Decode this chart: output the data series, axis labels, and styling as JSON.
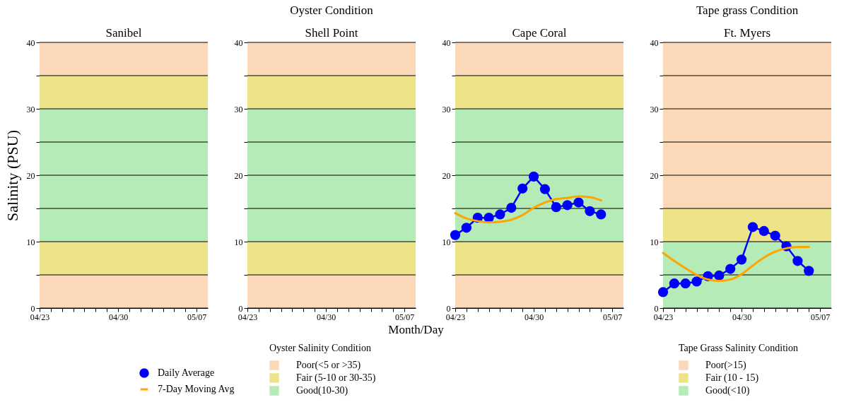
{
  "chart_data": [
    {
      "type": "line",
      "title": "Sanibel",
      "ylabel": "Salinity (PSU)",
      "legend": "bottom right",
      "legend_title": "Oyster Salinity Condition",
      "xlim": [
        "--04-23",
        "--05-08"
      ],
      "ylim": [
        0,
        40
      ],
      "yticks": [
        0,
        {
          "value": 5,
          "label": null
        },
        10,
        {
          "value": 15,
          "label": null
        },
        20,
        {
          "value": 25,
          "label": null
        },
        30,
        {
          "value": 35,
          "label": null
        },
        40
      ],
      "xticks": [
        {
          "value": "--04-23",
          "label": "04/23"
        },
        {
          "value": "--04-24",
          "label": null
        },
        {
          "value": "--04-25",
          "label": null
        },
        {
          "value": "--04-26",
          "label": null
        },
        {
          "value": "--04-27",
          "label": null
        },
        {
          "value": "--04-28",
          "label": null
        },
        {
          "value": "--04-29",
          "label": null
        },
        {
          "value": "--04-30",
          "label": "04/30"
        },
        {
          "value": "--05-01",
          "label": null
        },
        {
          "value": "--05-02",
          "label": null
        },
        {
          "value": "--05-03",
          "label": null
        },
        {
          "value": "--05-04",
          "label": null
        },
        {
          "value": "--05-05",
          "label": null
        },
        {
          "value": "--05-06",
          "label": null
        },
        {
          "value": "--05-07",
          "label": "05/07"
        }
      ],
      "grid": "y",
      "bands": [
        {
          "axis": "y",
          "from": 0,
          "to": 5,
          "label": "Poor(<5 or >35)",
          "color": "#fbd8b8"
        },
        {
          "axis": "y",
          "from": 5,
          "to": 10,
          "label": "Fair (5-10 or 30-35)",
          "color": "#ede389"
        },
        {
          "axis": "y",
          "from": 10,
          "to": 30,
          "label": "Good(10-30)",
          "color": "#b4ebb6"
        },
        {
          "axis": "y",
          "from": 30,
          "to": 35,
          "color": "#ede389"
        },
        {
          "axis": "y",
          "from": 35,
          "to": 40,
          "color": "#fbd8b8"
        }
      ]
    },
    {
      "type": "line",
      "title": "Shell Point",
      "xlabel": "Month/Day",
      "annotations": [
        "Oyster Condition"
      ],
      "xlim": [
        "--04-23",
        "--05-08"
      ],
      "ylim": [
        0,
        40
      ],
      "yticks": [
        0,
        {
          "value": 5,
          "label": null
        },
        10,
        {
          "value": 15,
          "label": null
        },
        20,
        {
          "value": 25,
          "label": null
        },
        30,
        {
          "value": 35,
          "label": null
        },
        40
      ],
      "xticks": [
        {
          "value": "--04-23",
          "label": "04/23"
        },
        {
          "value": "--04-24",
          "label": null
        },
        {
          "value": "--04-25",
          "label": null
        },
        {
          "value": "--04-26",
          "label": null
        },
        {
          "value": "--04-27",
          "label": null
        },
        {
          "value": "--04-28",
          "label": null
        },
        {
          "value": "--04-29",
          "label": null
        },
        {
          "value": "--04-30",
          "label": "04/30"
        },
        {
          "value": "--05-01",
          "label": null
        },
        {
          "value": "--05-02",
          "label": null
        },
        {
          "value": "--05-03",
          "label": null
        },
        {
          "value": "--05-04",
          "label": null
        },
        {
          "value": "--05-05",
          "label": null
        },
        {
          "value": "--05-06",
          "label": null
        },
        {
          "value": "--05-07",
          "label": "05/07"
        }
      ],
      "grid": "y",
      "bands": [
        {
          "axis": "y",
          "from": 0,
          "to": 5,
          "color": "#fbd8b8"
        },
        {
          "axis": "y",
          "from": 5,
          "to": 10,
          "color": "#ede389"
        },
        {
          "axis": "y",
          "from": 10,
          "to": 30,
          "color": "#b4ebb6"
        },
        {
          "axis": "y",
          "from": 30,
          "to": 35,
          "color": "#ede389"
        },
        {
          "axis": "y",
          "from": 35,
          "to": 40,
          "color": "#fbd8b8"
        }
      ]
    },
    {
      "type": "line",
      "title": "Cape Coral",
      "legend": "bottom left",
      "xlim": [
        "--04-23",
        "--05-08"
      ],
      "ylim": [
        0,
        40
      ],
      "yticks": [
        0,
        {
          "value": 5,
          "label": null
        },
        10,
        {
          "value": 15,
          "label": null
        },
        20,
        {
          "value": 25,
          "label": null
        },
        30,
        {
          "value": 35,
          "label": null
        },
        40
      ],
      "xticks": [
        {
          "value": "--04-23",
          "label": "04/23"
        },
        {
          "value": "--04-24",
          "label": null
        },
        {
          "value": "--04-25",
          "label": null
        },
        {
          "value": "--04-26",
          "label": null
        },
        {
          "value": "--04-27",
          "label": null
        },
        {
          "value": "--04-28",
          "label": null
        },
        {
          "value": "--04-29",
          "label": null
        },
        {
          "value": "--04-30",
          "label": "04/30"
        },
        {
          "value": "--05-01",
          "label": null
        },
        {
          "value": "--05-02",
          "label": null
        },
        {
          "value": "--05-03",
          "label": null
        },
        {
          "value": "--05-04",
          "label": null
        },
        {
          "value": "--05-05",
          "label": null
        },
        {
          "value": "--05-06",
          "label": null
        },
        {
          "value": "--05-07",
          "label": "05/07"
        }
      ],
      "grid": "y",
      "x": [
        "--04-23",
        "--04-24",
        "--04-25",
        "--04-26",
        "--04-27",
        "--04-28",
        "--04-29",
        "--04-30",
        "--05-01",
        "--05-02",
        "--05-03",
        "--05-04",
        "--05-05",
        "--05-06"
      ],
      "series": [
        {
          "name": "Daily Average",
          "color": "#0000ff",
          "marker": "circle",
          "values": [
            11.0,
            12.1,
            13.6,
            13.6,
            14.1,
            15.1,
            18.0,
            19.8,
            17.9,
            15.2,
            15.5,
            15.9,
            14.6,
            14.1
          ]
        },
        {
          "name": "7-Day Moving Avg",
          "color": "#ffa500",
          "marker": "none",
          "values": [
            14.3,
            13.5,
            13.1,
            12.9,
            13.0,
            13.3,
            14.0,
            15.1,
            15.9,
            16.4,
            16.6,
            16.8,
            16.7,
            16.2
          ]
        }
      ],
      "bands": [
        {
          "axis": "y",
          "from": 0,
          "to": 5,
          "color": "#fbd8b8"
        },
        {
          "axis": "y",
          "from": 5,
          "to": 10,
          "color": "#ede389"
        },
        {
          "axis": "y",
          "from": 10,
          "to": 30,
          "color": "#b4ebb6"
        },
        {
          "axis": "y",
          "from": 30,
          "to": 35,
          "color": "#ede389"
        },
        {
          "axis": "y",
          "from": 35,
          "to": 40,
          "color": "#fbd8b8"
        }
      ]
    },
    {
      "type": "line",
      "title": "Ft. Myers",
      "annotations": [
        "Tape grass Condition"
      ],
      "legend": "bottom",
      "legend_title": "Tape Grass Salinity Condition",
      "xlim": [
        "--04-23",
        "--05-08"
      ],
      "ylim": [
        0,
        40
      ],
      "yticks": [
        0,
        {
          "value": 5,
          "label": null
        },
        10,
        {
          "value": 15,
          "label": null
        },
        20,
        {
          "value": 25,
          "label": null
        },
        30,
        {
          "value": 35,
          "label": null
        },
        40
      ],
      "xticks": [
        {
          "value": "--04-23",
          "label": "04/23"
        },
        {
          "value": "--04-24",
          "label": null
        },
        {
          "value": "--04-25",
          "label": null
        },
        {
          "value": "--04-26",
          "label": null
        },
        {
          "value": "--04-27",
          "label": null
        },
        {
          "value": "--04-28",
          "label": null
        },
        {
          "value": "--04-29",
          "label": null
        },
        {
          "value": "--04-30",
          "label": "04/30"
        },
        {
          "value": "--05-01",
          "label": null
        },
        {
          "value": "--05-02",
          "label": null
        },
        {
          "value": "--05-03",
          "label": null
        },
        {
          "value": "--05-04",
          "label": null
        },
        {
          "value": "--05-05",
          "label": null
        },
        {
          "value": "--05-06",
          "label": null
        },
        {
          "value": "--05-07",
          "label": "05/07"
        }
      ],
      "grid": "y",
      "x": [
        "--04-23",
        "--04-24",
        "--04-25",
        "--04-26",
        "--04-27",
        "--04-28",
        "--04-29",
        "--04-30",
        "--05-01",
        "--05-02",
        "--05-03",
        "--05-04",
        "--05-05",
        "--05-06"
      ],
      "series": [
        {
          "color": "#0000ff",
          "marker": "circle",
          "values": [
            2.4,
            3.7,
            3.7,
            4.0,
            4.8,
            4.9,
            5.9,
            7.3,
            12.2,
            11.6,
            10.9,
            9.3,
            7.1,
            5.6
          ]
        },
        {
          "color": "#ffa500",
          "marker": "none",
          "values": [
            8.3,
            7.1,
            6.0,
            5.0,
            4.3,
            4.1,
            4.3,
            5.1,
            6.4,
            7.6,
            8.5,
            9.0,
            9.2,
            9.2
          ]
        }
      ],
      "bands": [
        {
          "axis": "y",
          "from": 15,
          "to": 40,
          "label": "Poor(>15)",
          "color": "#fbd8b8"
        },
        {
          "axis": "y",
          "from": 10,
          "to": 15,
          "label": "Fair (10 - 15)",
          "color": "#ede389"
        },
        {
          "axis": "y",
          "from": 0,
          "to": 10,
          "label": "Good(<10)",
          "color": "#b4ebb6"
        }
      ]
    }
  ]
}
